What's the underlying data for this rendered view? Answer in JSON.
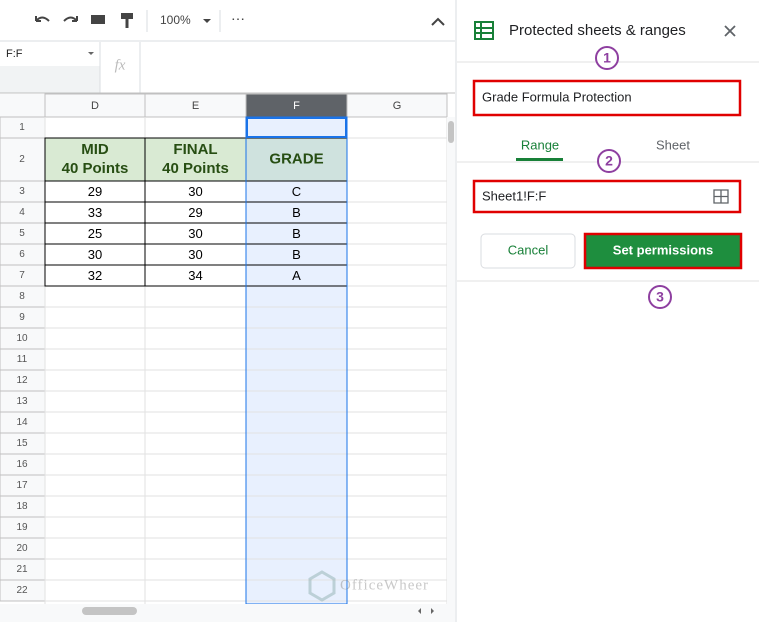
{
  "toolbar": {
    "zoom": "100%",
    "more": "⋯"
  },
  "formula_bar": {
    "name_box": "F:F",
    "fx": "fx"
  },
  "sheet": {
    "columns": [
      "D",
      "E",
      "F",
      "G"
    ],
    "row_numbers": [
      1,
      2,
      3,
      4,
      5,
      6,
      7,
      8,
      9,
      10,
      11,
      12,
      13,
      14,
      15,
      16,
      17,
      18,
      19,
      20,
      21,
      22
    ],
    "headers": [
      {
        "lines": [
          "MID",
          "40 Points"
        ]
      },
      {
        "lines": [
          "FINAL",
          "40 Points"
        ]
      },
      {
        "lines": [
          "GRADE"
        ]
      }
    ],
    "rows": [
      [
        29,
        30,
        "C"
      ],
      [
        33,
        29,
        "B"
      ],
      [
        25,
        30,
        "B"
      ],
      [
        30,
        30,
        "B"
      ],
      [
        32,
        34,
        "A"
      ]
    ]
  },
  "panel": {
    "title": "Protected sheets & ranges",
    "description": "Grade Formula Protection",
    "tabs": [
      "Range",
      "Sheet"
    ],
    "range": "Sheet1!F:F",
    "buttons": [
      "Cancel",
      "Set permissions"
    ],
    "steps": [
      "1",
      "2",
      "3"
    ]
  },
  "watermark": "OfficeWheer"
}
